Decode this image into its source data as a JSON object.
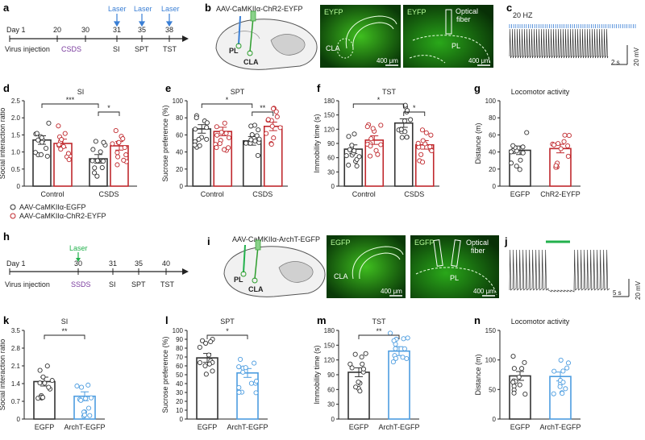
{
  "panel_letters": [
    "a",
    "b",
    "c",
    "d",
    "e",
    "f",
    "g",
    "h",
    "i",
    "j",
    "k",
    "l",
    "m",
    "n"
  ],
  "colors": {
    "control": "#333333",
    "chr2": "#c0282d",
    "archt": "#4d9de0",
    "laser_blue": "#3a7fd5",
    "laser_green": "#22b14c",
    "csds": "#7a3b9e",
    "micro_green": "#2e8b1e"
  },
  "timeline_a": {
    "day1": "Day 1",
    "virus": "Virus injection",
    "laser": "Laser",
    "days": [
      "20",
      "30",
      "31",
      "35",
      "38"
    ],
    "stage_csds": "CSDS",
    "tests": [
      "SI",
      "SPT",
      "TST"
    ]
  },
  "timeline_h": {
    "day1": "Day 1",
    "virus": "Virus injection",
    "laser": "Laser",
    "days": [
      "30",
      "31",
      "35",
      "40"
    ],
    "stage_ssds": "SSDS",
    "tests": [
      "SI",
      "SPT",
      "TST"
    ]
  },
  "panel_b": {
    "construct": "AAV-CaMKIIα-ChR2-EYFP",
    "pl": "PL",
    "cla": "CLA",
    "micro1_label": "EYFP",
    "micro1_region": "CLA",
    "micro1_scale": "400 μm",
    "micro2_label": "EYFP",
    "micro2_fiber": [
      "Optical",
      "fiber"
    ],
    "micro2_region": "PL",
    "micro2_scale": "400 μm"
  },
  "panel_c": {
    "freq": "20 HZ",
    "time_scale": "2 s",
    "volt_scale": "20 mV"
  },
  "panel_i": {
    "construct": "AAV-CaMKIIα-ArchT-EGFP",
    "pl": "PL",
    "cla": "CLA",
    "micro1_label": "EGFP",
    "micro1_region": "CLA",
    "micro1_scale": "400 μm",
    "micro2_label": "EGFP",
    "micro2_fiber": [
      "Optical",
      "fiber"
    ],
    "micro2_region": "PL",
    "micro2_scale": "400 μm"
  },
  "panel_j": {
    "time_scale": "5 s",
    "volt_scale": "20 mV"
  },
  "legend": [
    "AAV-CaMKIIα-EGFP",
    "AAV-CaMKIIα-ChR2-EYFP"
  ],
  "chart_data": [
    {
      "panel": "d",
      "type": "bar",
      "title": "SI",
      "ylabel": "Social interaction ratio",
      "ylim": [
        0,
        2.5
      ],
      "ticks": [
        "0",
        "0.5",
        "1.0",
        "1.5",
        "2.0",
        "2.5"
      ],
      "groups": [
        "Control",
        "CSDS"
      ],
      "series": [
        {
          "name": "AAV-CaMKIIα-EGFP",
          "values": [
            1.35,
            0.8
          ]
        },
        {
          "name": "AAV-CaMKIIα-ChR2-EYFP",
          "values": [
            1.25,
            1.18
          ]
        }
      ],
      "sig": [
        {
          "label": "***",
          "from": "Control/EGFP",
          "to": "CSDS/EGFP"
        },
        {
          "label": "*",
          "from": "CSDS/EGFP",
          "to": "CSDS/ChR2"
        }
      ]
    },
    {
      "panel": "e",
      "type": "bar",
      "title": "SPT",
      "ylabel": "Sucrose preference (%)",
      "ylim": [
        0,
        100
      ],
      "ticks": [
        "0",
        "20",
        "40",
        "60",
        "80",
        "100"
      ],
      "groups": [
        "Control",
        "CSDS"
      ],
      "series": [
        {
          "name": "AAV-CaMKIIα-EGFP",
          "values": [
            67,
            53
          ]
        },
        {
          "name": "AAV-CaMKIIα-ChR2-EYFP",
          "values": [
            64,
            70
          ]
        }
      ],
      "sig": [
        {
          "label": "*"
        },
        {
          "label": "**"
        }
      ]
    },
    {
      "panel": "f",
      "type": "bar",
      "title": "TST",
      "ylabel": "Immobility time (s)",
      "ylim": [
        0,
        180
      ],
      "ticks": [
        "0",
        "30",
        "60",
        "90",
        "120",
        "150",
        "180"
      ],
      "groups": [
        "Control",
        "CSDS"
      ],
      "series": [
        {
          "name": "AAV-CaMKIIα-EGFP",
          "values": [
            78,
            133
          ]
        },
        {
          "name": "AAV-CaMKIIα-ChR2-EYFP",
          "values": [
            97,
            87
          ]
        }
      ],
      "sig": [
        {
          "label": "*"
        },
        {
          "label": "*"
        }
      ]
    },
    {
      "panel": "g",
      "type": "bar",
      "title": "Locomotor activity",
      "ylabel": "Distance (m)",
      "ylim": [
        0,
        100
      ],
      "ticks": [
        "0",
        "20",
        "40",
        "60",
        "80",
        "100"
      ],
      "categories": [
        "EGFP",
        "ChR2-EYFP"
      ],
      "values": [
        42,
        44
      ]
    },
    {
      "panel": "k",
      "type": "bar",
      "title": "SI",
      "ylabel": "Social interaction ratio",
      "ylim": [
        0,
        3.5
      ],
      "ticks": [
        "0",
        "0.7",
        "1.4",
        "2.1",
        "2.8",
        "3.5"
      ],
      "categories": [
        "EGFP",
        "ArchT-EGFP"
      ],
      "values": [
        1.48,
        0.9
      ],
      "sig": [
        {
          "label": "**"
        }
      ]
    },
    {
      "panel": "l",
      "type": "bar",
      "title": "SPT",
      "ylabel": "Sucrose preference (%)",
      "ylim": [
        0,
        100
      ],
      "ticks": [
        "0",
        "10",
        "20",
        "30",
        "40",
        "50",
        "60",
        "70",
        "80",
        "90",
        "100"
      ],
      "categories": [
        "EGFP",
        "ArchT-EGFP"
      ],
      "values": [
        69,
        52
      ],
      "sig": [
        {
          "label": "*"
        }
      ]
    },
    {
      "panel": "m",
      "type": "bar",
      "title": "TST",
      "ylabel": "Immobility time (s)",
      "ylim": [
        0,
        180
      ],
      "ticks": [
        "0",
        "30",
        "60",
        "90",
        "120",
        "150",
        "180"
      ],
      "categories": [
        "EGFP",
        "ArchT-EGFP"
      ],
      "values": [
        95,
        138
      ],
      "sig": [
        {
          "label": "**"
        }
      ]
    },
    {
      "panel": "n",
      "type": "bar",
      "title": "Locomotor activity",
      "ylabel": "Distance (m)",
      "ylim": [
        0,
        150
      ],
      "ticks": [
        "0",
        "50",
        "100",
        "150"
      ],
      "categories": [
        "EGFP",
        "ArchT-EGFP"
      ],
      "values": [
        73,
        72
      ]
    }
  ]
}
